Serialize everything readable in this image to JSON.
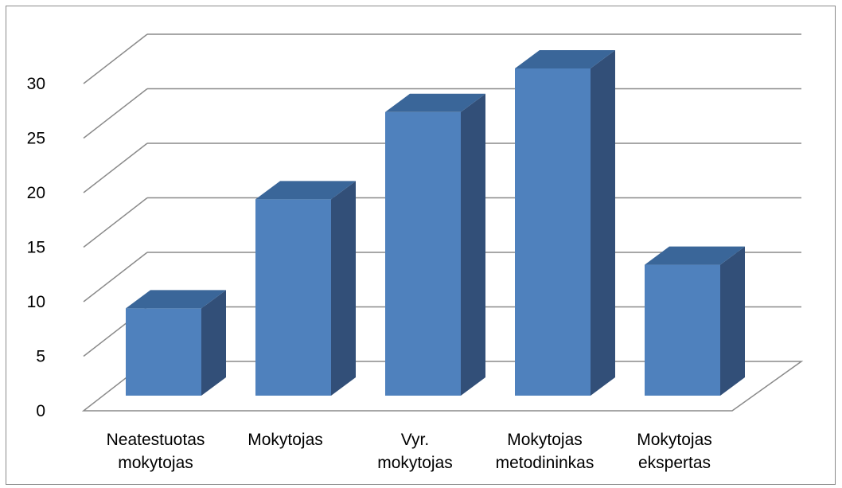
{
  "chart_data": {
    "type": "bar",
    "style": "3d-column",
    "categories": [
      [
        "Neatestuotas",
        "mokytojas"
      ],
      [
        "Mokytojas"
      ],
      [
        "Vyr.",
        "mokytojas"
      ],
      [
        "Mokytojas",
        "metodininkas"
      ],
      [
        "Mokytojas",
        "ekspertas"
      ]
    ],
    "values": [
      8,
      18,
      26,
      30,
      12
    ],
    "ylim": [
      0,
      30
    ],
    "yticks": [
      0,
      5,
      10,
      15,
      20,
      25,
      30
    ],
    "grid": true,
    "legend": "none",
    "colors": {
      "bar_front": "#4f81bd",
      "bar_top": "#3a6699",
      "bar_side": "#324f78",
      "gridline": "#8a8a8a",
      "border": "#8a8a8a"
    }
  }
}
